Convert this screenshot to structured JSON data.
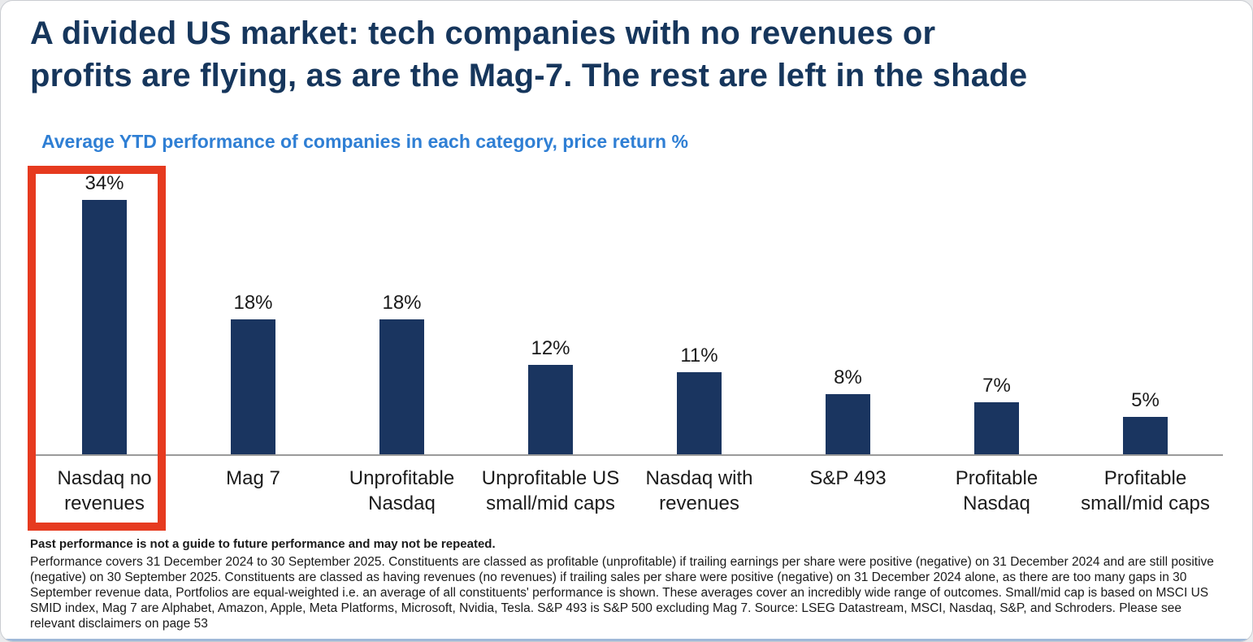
{
  "page": {
    "title": "A divided US market: tech companies with no revenues or\nprofits are flying, as are the Mag-7. The rest are left in the shade",
    "subtitle": "Average YTD performance of companies in each category, price return %"
  },
  "chart_data": {
    "type": "bar",
    "title": "A divided US market: tech companies with no revenues or profits are flying, as are the Mag-7. The rest are left in the shade",
    "subtitle": "Average YTD performance of companies in each category, price return %",
    "categories": [
      "Nasdaq no revenues",
      "Mag 7",
      "Unprofitable Nasdaq",
      "Unprofitable US small/mid caps",
      "Nasdaq with revenues",
      "S&P 493",
      "Profitable Nasdaq",
      "Profitable small/mid caps"
    ],
    "values": [
      34,
      18,
      18,
      12,
      11,
      8,
      7,
      5
    ],
    "value_labels": [
      "34%",
      "18%",
      "18%",
      "12%",
      "11%",
      "8%",
      "7%",
      "5%"
    ],
    "xlabel": "",
    "ylabel": "price return %",
    "ylim": [
      0,
      36
    ],
    "grid": false,
    "legend": false,
    "bar_color": "#1a3560",
    "highlight_index": 0,
    "highlight_color": "#e63a1f"
  },
  "footnote": {
    "bold": "Past performance is not a guide to future performance and may not be repeated.",
    "body": "Performance covers 31 December 2024 to 30 September 2025. Constituents are classed as profitable (unprofitable) if trailing earnings per share were positive (negative) on 31 December 2024 and are still positive (negative) on 30 September 2025. Constituents are classed as having revenues (no revenues) if trailing sales per share were positive (negative) on 31 December 2024 alone, as there are too many gaps in 30 September revenue data, Portfolios are equal-weighted i.e. an average of all constituents' performance is shown. These averages cover an incredibly wide range of outcomes. Small/mid cap is based on MSCI US SMID index, Mag 7 are Alphabet, Amazon, Apple, Meta Platforms, Microsoft, Nvidia, Tesla. S&P 493 is S&P 500 excluding Mag 7. Source: LSEG Datastream, MSCI, Nasdaq, S&P, and Schroders. Please see relevant disclaimers on page 53"
  }
}
